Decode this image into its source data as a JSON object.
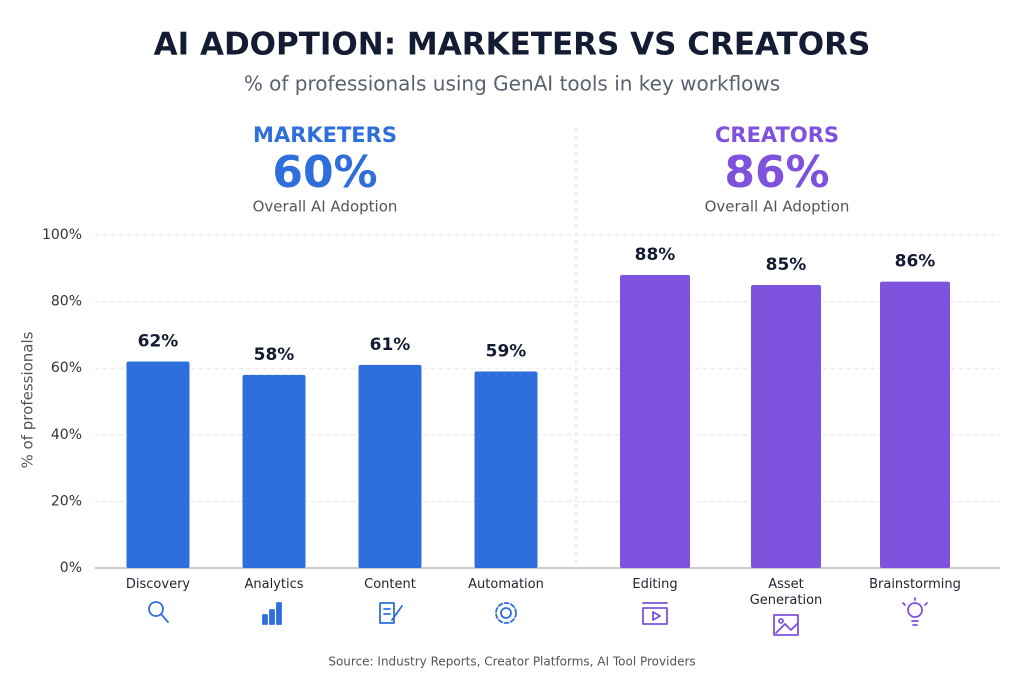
{
  "chart_data": {
    "type": "bar",
    "title": "AI ADOPTION: MARKETERS VS CREATORS",
    "subtitle": "% of professionals using GenAI tools in key workflows",
    "y_label": "% of professionals",
    "source": "Source: Industry Reports, Creator Platforms, AI Tool Providers",
    "ylim": [
      0,
      100
    ],
    "yticks": [
      {
        "value": 0,
        "label": "0%"
      },
      {
        "value": 20,
        "label": "20%"
      },
      {
        "value": 40,
        "label": "40%"
      },
      {
        "value": 60,
        "label": "60%"
      },
      {
        "value": 80,
        "label": "80%"
      },
      {
        "value": 100,
        "label": "100%"
      }
    ],
    "grid": true,
    "groups": [
      {
        "name": "MARKETERS",
        "color": "#2f6fdc",
        "overall": 60,
        "overall_label": "60%",
        "caption": "Overall AI Adoption",
        "categories": [
          "Discovery",
          "Analytics",
          "Content",
          "Automation"
        ],
        "values": [
          62,
          58,
          61,
          59
        ],
        "value_labels": [
          "62%",
          "58%",
          "61%",
          "59%"
        ]
      },
      {
        "name": "CREATORS",
        "color": "#7f52dd",
        "overall": 86,
        "overall_label": "86%",
        "caption": "Overall AI Adoption",
        "categories": [
          "Editing",
          "Asset Generation",
          "Brainstorming"
        ],
        "values": [
          88,
          85,
          86
        ],
        "value_labels": [
          "88%",
          "85%",
          "86%"
        ]
      }
    ]
  }
}
